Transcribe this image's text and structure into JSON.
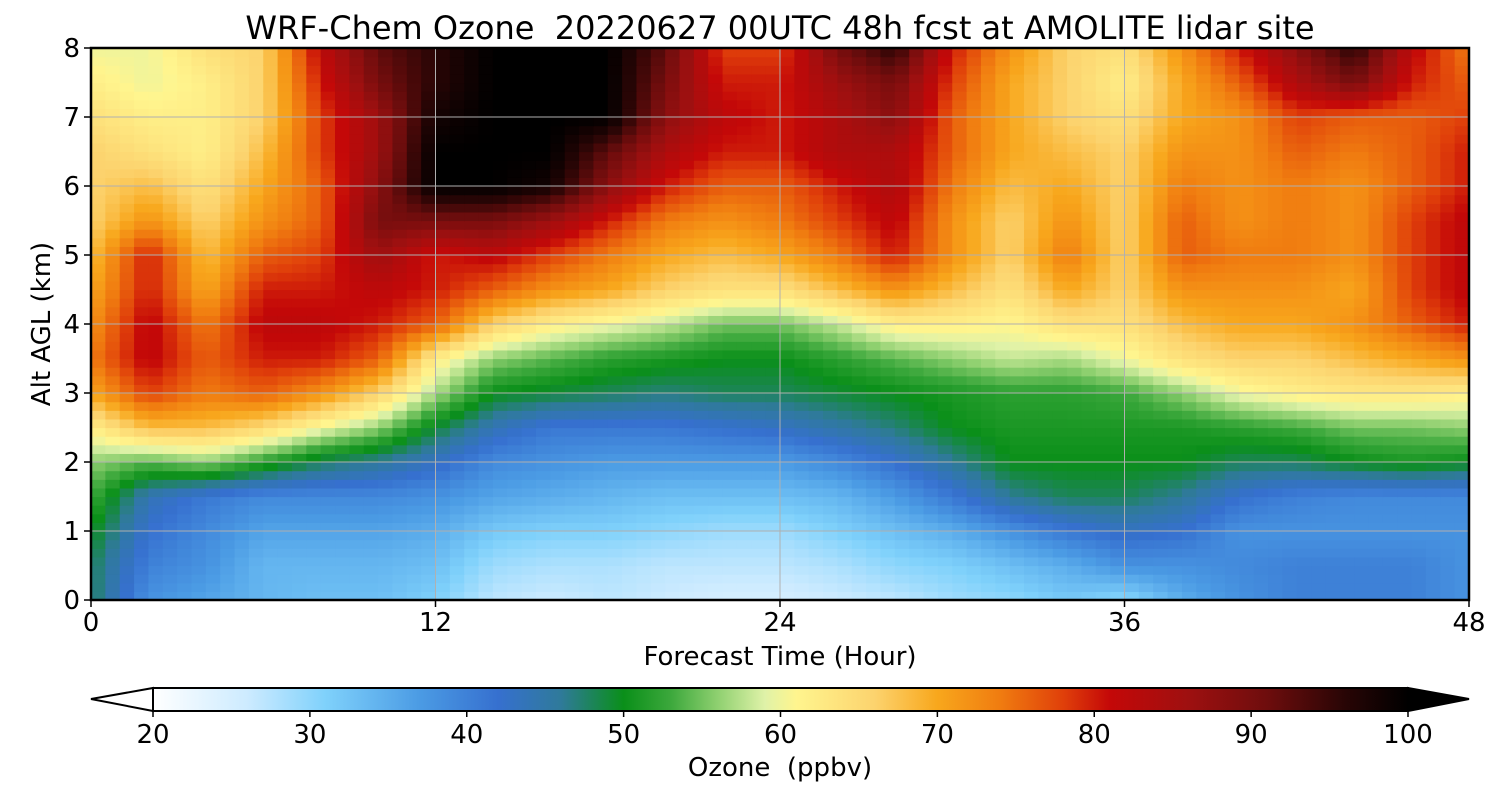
{
  "chart_data": {
    "type": "heatmap",
    "title": "WRF-Chem Ozone  20220627 00UTC 48h fcst at AMOLITE lidar site",
    "xlabel": "Forecast Time (Hour)",
    "ylabel": "Alt AGL (km)",
    "xlim": [
      0,
      48
    ],
    "ylim": [
      0,
      8
    ],
    "xticks": [
      0,
      12,
      24,
      36,
      48
    ],
    "yticks": [
      0,
      1,
      2,
      3,
      4,
      5,
      6,
      7,
      8
    ],
    "grid": true,
    "x": [
      0,
      2,
      4,
      6,
      8,
      10,
      12,
      14,
      16,
      18,
      20,
      22,
      24,
      26,
      28,
      30,
      32,
      34,
      36,
      38,
      40,
      42,
      44,
      46,
      48
    ],
    "y": [
      0,
      0.5,
      1,
      1.5,
      2,
      2.5,
      3,
      3.5,
      4,
      4.5,
      5,
      5.5,
      6,
      6.5,
      7,
      7.5,
      8
    ],
    "values": [
      [
        48,
        38,
        36,
        34,
        33,
        33,
        31,
        27,
        26,
        27,
        26,
        25,
        25,
        26,
        27,
        29,
        30,
        32,
        30,
        35,
        38,
        40,
        40,
        40,
        38
      ],
      [
        48,
        40,
        38,
        34,
        34,
        34,
        33,
        29,
        28,
        28,
        27,
        27,
        27,
        28,
        30,
        31,
        33,
        35,
        38,
        38,
        39,
        40,
        40,
        40,
        38
      ],
      [
        50,
        42,
        39,
        36,
        36,
        36,
        35,
        32,
        31,
        31,
        30,
        29,
        29,
        31,
        33,
        35,
        38,
        41,
        43,
        42,
        38,
        38,
        38,
        38,
        38
      ],
      [
        53,
        44,
        41,
        39,
        39,
        39,
        38,
        36,
        35,
        34,
        33,
        33,
        33,
        34,
        37,
        41,
        46,
        48,
        48,
        46,
        42,
        40,
        39,
        39,
        39
      ],
      [
        56,
        54,
        56,
        52,
        48,
        46,
        43,
        39,
        38,
        37,
        37,
        37,
        37,
        39,
        42,
        46,
        50,
        50,
        50,
        50,
        48,
        48,
        50,
        51,
        50
      ],
      [
        62,
        68,
        68,
        65,
        60,
        56,
        49,
        44,
        41,
        41,
        41,
        42,
        43,
        45,
        47,
        50,
        51,
        51,
        51,
        51,
        52,
        53,
        55,
        55,
        56
      ],
      [
        70,
        78,
        74,
        76,
        72,
        66,
        57,
        50,
        49,
        48,
        47,
        48,
        48,
        49,
        50,
        51,
        52,
        52,
        53,
        56,
        60,
        62,
        63,
        63,
        62
      ],
      [
        74,
        82,
        76,
        80,
        80,
        76,
        62,
        56,
        54,
        52,
        51,
        50,
        50,
        52,
        54,
        56,
        58,
        57,
        60,
        64,
        66,
        66,
        68,
        70,
        72
      ],
      [
        72,
        82,
        74,
        82,
        82,
        80,
        76,
        66,
        62,
        60,
        58,
        55,
        55,
        58,
        62,
        62,
        61,
        64,
        64,
        68,
        70,
        70,
        72,
        76,
        80
      ],
      [
        70,
        80,
        70,
        80,
        80,
        82,
        80,
        76,
        72,
        70,
        66,
        64,
        64,
        68,
        72,
        68,
        64,
        70,
        66,
        72,
        72,
        72,
        70,
        78,
        82
      ],
      [
        68,
        80,
        68,
        76,
        78,
        86,
        80,
        82,
        78,
        74,
        70,
        68,
        70,
        74,
        80,
        72,
        66,
        74,
        66,
        76,
        74,
        74,
        72,
        78,
        82
      ],
      [
        66,
        72,
        66,
        72,
        76,
        90,
        90,
        90,
        86,
        80,
        74,
        72,
        74,
        78,
        82,
        72,
        66,
        72,
        66,
        76,
        72,
        74,
        72,
        78,
        82
      ],
      [
        66,
        68,
        64,
        70,
        76,
        88,
        100,
        100,
        98,
        88,
        80,
        76,
        76,
        80,
        84,
        74,
        68,
        70,
        66,
        74,
        72,
        74,
        72,
        76,
        80
      ],
      [
        66,
        64,
        62,
        68,
        78,
        86,
        100,
        100,
        100,
        92,
        84,
        80,
        80,
        84,
        84,
        76,
        70,
        68,
        66,
        72,
        72,
        76,
        74,
        76,
        80
      ],
      [
        64,
        62,
        62,
        66,
        78,
        86,
        98,
        100,
        100,
        100,
        88,
        82,
        80,
        84,
        88,
        76,
        70,
        66,
        64,
        70,
        72,
        78,
        76,
        76,
        78
      ],
      [
        62,
        60,
        62,
        66,
        80,
        90,
        96,
        100,
        100,
        100,
        90,
        80,
        80,
        86,
        90,
        78,
        70,
        66,
        62,
        70,
        76,
        84,
        90,
        80,
        76
      ],
      [
        60,
        60,
        64,
        66,
        82,
        92,
        96,
        100,
        100,
        100,
        92,
        78,
        78,
        90,
        96,
        80,
        72,
        66,
        64,
        72,
        80,
        88,
        96,
        82,
        74
      ]
    ],
    "colorbar": {
      "label": "Ozone  (ppbv)",
      "min": 20,
      "max": 100,
      "ticks": [
        20,
        30,
        40,
        50,
        60,
        70,
        80,
        90,
        100
      ],
      "extend": "both",
      "colormap": [
        [
          20,
          "#ffffff"
        ],
        [
          26,
          "#cdebff"
        ],
        [
          31,
          "#7fd1fb"
        ],
        [
          37,
          "#4b9be4"
        ],
        [
          42,
          "#3670cf"
        ],
        [
          46,
          "#2f7a9a"
        ],
        [
          50,
          "#0a8f19"
        ],
        [
          53,
          "#3ca83c"
        ],
        [
          56,
          "#8fd070"
        ],
        [
          59,
          "#dff2a8"
        ],
        [
          61,
          "#fff58e"
        ],
        [
          66,
          "#fcd36e"
        ],
        [
          70,
          "#f8a71c"
        ],
        [
          74,
          "#f07c10"
        ],
        [
          78,
          "#e0400a"
        ],
        [
          81,
          "#c40808"
        ],
        [
          86,
          "#9e1010"
        ],
        [
          91,
          "#6e0d0d"
        ],
        [
          96,
          "#280505"
        ],
        [
          100,
          "#000000"
        ]
      ]
    }
  }
}
